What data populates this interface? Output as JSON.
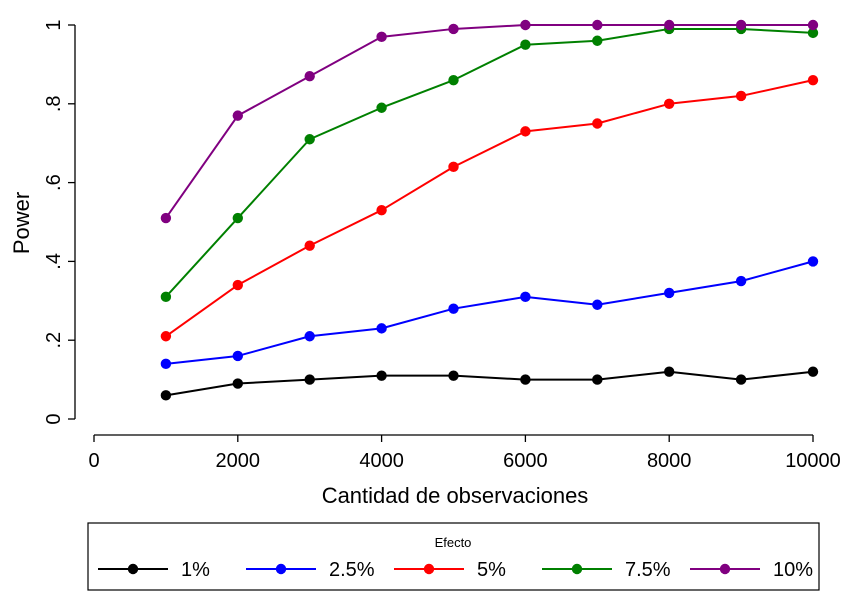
{
  "chart_data": {
    "type": "line",
    "title": "",
    "xlabel": "Cantidad de observaciones",
    "ylabel": "Power",
    "xlim": [
      0,
      10000
    ],
    "ylim": [
      0,
      1
    ],
    "x_ticks": [
      0,
      2000,
      4000,
      6000,
      8000,
      10000
    ],
    "x_tick_labels": [
      "0",
      "2000",
      "4000",
      "6000",
      "8000",
      "10000"
    ],
    "y_ticks": [
      0,
      0.2,
      0.4,
      0.6,
      0.8,
      1
    ],
    "y_tick_labels": [
      "0",
      ".2",
      ".4",
      ".6",
      ".8",
      "1"
    ],
    "grid": false,
    "legend": {
      "title": "Efecto",
      "placement": "bottom"
    },
    "x": [
      1000,
      2000,
      3000,
      4000,
      5000,
      6000,
      7000,
      8000,
      9000,
      10000
    ],
    "series": [
      {
        "name": "1%",
        "color": "#000000",
        "values": [
          0.06,
          0.09,
          0.1,
          0.11,
          0.11,
          0.1,
          0.1,
          0.12,
          0.1,
          0.12
        ]
      },
      {
        "name": "2.5%",
        "color": "#0000ff",
        "values": [
          0.14,
          0.16,
          0.21,
          0.23,
          0.28,
          0.31,
          0.29,
          0.32,
          0.35,
          0.4
        ]
      },
      {
        "name": "5%",
        "color": "#ff0000",
        "values": [
          0.21,
          0.34,
          0.44,
          0.53,
          0.64,
          0.73,
          0.75,
          0.8,
          0.82,
          0.86
        ]
      },
      {
        "name": "7.5%",
        "color": "#008000",
        "values": [
          0.31,
          0.51,
          0.71,
          0.79,
          0.86,
          0.95,
          0.96,
          0.99,
          0.99,
          0.98
        ]
      },
      {
        "name": "10%",
        "color": "#800080",
        "values": [
          0.51,
          0.77,
          0.87,
          0.97,
          0.99,
          1.0,
          1.0,
          1.0,
          1.0,
          1.0
        ]
      }
    ]
  }
}
